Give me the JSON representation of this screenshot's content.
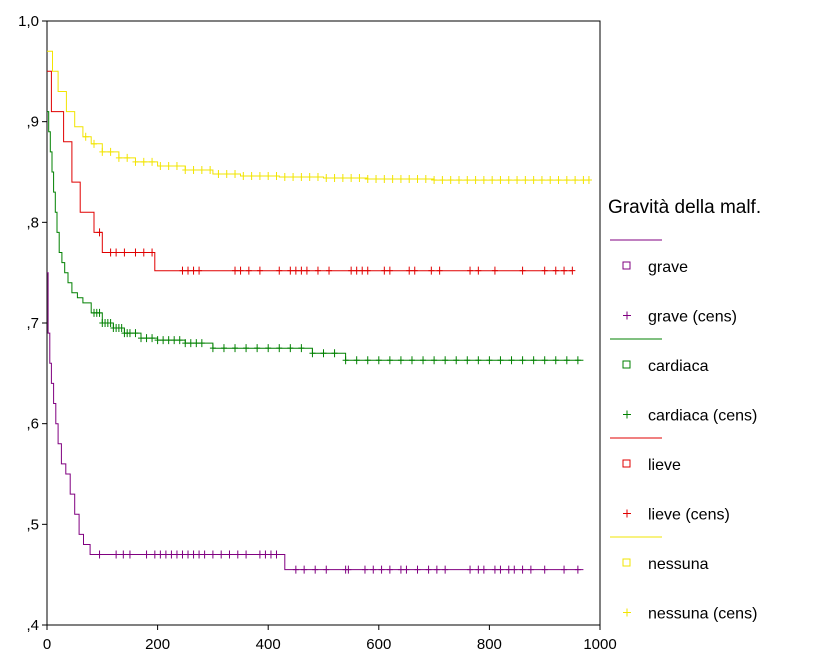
{
  "chart_data": {
    "type": "line",
    "chart_subtype": "kaplan-meier survival",
    "title": "",
    "xlabel": "",
    "ylabel": "",
    "xlim": [
      0,
      1000
    ],
    "ylim": [
      0.4,
      1.0
    ],
    "x_ticks": [
      0,
      200,
      400,
      600,
      800,
      1000
    ],
    "x_tick_labels": [
      "0",
      "200",
      "400",
      "600",
      "800",
      "1000"
    ],
    "y_ticks": [
      0.4,
      0.5,
      0.6,
      0.7,
      0.8,
      0.9,
      1.0
    ],
    "y_tick_labels": [
      ",4",
      ",5",
      ",6",
      ",7",
      ",8",
      ",9",
      "1,0"
    ],
    "grid": false,
    "legend_title": "Gravità della malf.",
    "legend_position": "right",
    "legend_entries": [
      "grave",
      "grave (cens)",
      "cardiaca",
      "cardiaca (cens)",
      "lieve",
      "lieve (cens)",
      "nessuna",
      "nessuna (cens)"
    ],
    "series": [
      {
        "name": "grave",
        "color": "#800080",
        "steps": [
          [
            0,
            0.75
          ],
          [
            2,
            0.69
          ],
          [
            5,
            0.66
          ],
          [
            8,
            0.64
          ],
          [
            12,
            0.62
          ],
          [
            16,
            0.6
          ],
          [
            20,
            0.58
          ],
          [
            26,
            0.56
          ],
          [
            34,
            0.55
          ],
          [
            42,
            0.53
          ],
          [
            50,
            0.51
          ],
          [
            58,
            0.49
          ],
          [
            66,
            0.48
          ],
          [
            78,
            0.47
          ],
          [
            430,
            0.455
          ],
          [
            970,
            0.455
          ]
        ],
        "censored": [
          95,
          125,
          138,
          150,
          180,
          195,
          205,
          215,
          225,
          235,
          245,
          255,
          265,
          275,
          285,
          300,
          315,
          330,
          345,
          360,
          385,
          395,
          405,
          415,
          450,
          465,
          485,
          505,
          540,
          545,
          575,
          590,
          605,
          620,
          640,
          650,
          670,
          690,
          705,
          720,
          765,
          780,
          790,
          810,
          820,
          835,
          845,
          860,
          875,
          900,
          935,
          960
        ]
      },
      {
        "name": "cardiaca",
        "color": "#008000",
        "steps": [
          [
            0,
            0.91
          ],
          [
            3,
            0.89
          ],
          [
            6,
            0.87
          ],
          [
            9,
            0.85
          ],
          [
            12,
            0.83
          ],
          [
            15,
            0.81
          ],
          [
            18,
            0.79
          ],
          [
            22,
            0.77
          ],
          [
            27,
            0.76
          ],
          [
            32,
            0.75
          ],
          [
            38,
            0.74
          ],
          [
            45,
            0.73
          ],
          [
            55,
            0.725
          ],
          [
            65,
            0.72
          ],
          [
            80,
            0.71
          ],
          [
            100,
            0.7
          ],
          [
            120,
            0.695
          ],
          [
            140,
            0.69
          ],
          [
            170,
            0.685
          ],
          [
            200,
            0.683
          ],
          [
            250,
            0.68
          ],
          [
            300,
            0.675
          ],
          [
            480,
            0.67
          ],
          [
            540,
            0.663
          ],
          [
            970,
            0.663
          ]
        ],
        "censored": [
          85,
          90,
          95,
          100,
          105,
          110,
          115,
          120,
          125,
          130,
          135,
          140,
          145,
          150,
          160,
          170,
          180,
          190,
          200,
          210,
          220,
          230,
          240,
          250,
          260,
          270,
          280,
          300,
          320,
          340,
          360,
          380,
          400,
          420,
          440,
          460,
          480,
          500,
          520,
          540,
          560,
          580,
          600,
          620,
          640,
          660,
          680,
          700,
          720,
          740,
          760,
          780,
          800,
          820,
          840,
          860,
          880,
          900,
          920,
          940,
          960
        ]
      },
      {
        "name": "lieve",
        "color": "#e00000",
        "steps": [
          [
            0,
            0.95
          ],
          [
            8,
            0.91
          ],
          [
            30,
            0.88
          ],
          [
            45,
            0.84
          ],
          [
            60,
            0.81
          ],
          [
            85,
            0.79
          ],
          [
            100,
            0.77
          ],
          [
            195,
            0.752
          ],
          [
            950,
            0.752
          ]
        ],
        "censored": [
          95,
          115,
          125,
          140,
          160,
          175,
          190,
          245,
          255,
          265,
          275,
          340,
          350,
          365,
          385,
          420,
          440,
          450,
          460,
          470,
          490,
          510,
          550,
          560,
          570,
          580,
          610,
          620,
          655,
          665,
          695,
          710,
          765,
          780,
          810,
          860,
          900,
          920,
          935,
          950
        ]
      },
      {
        "name": "nessuna",
        "color": "#f2e400",
        "steps": [
          [
            0,
            0.97
          ],
          [
            10,
            0.95
          ],
          [
            20,
            0.93
          ],
          [
            35,
            0.91
          ],
          [
            50,
            0.895
          ],
          [
            65,
            0.885
          ],
          [
            80,
            0.878
          ],
          [
            100,
            0.87
          ],
          [
            130,
            0.864
          ],
          [
            160,
            0.86
          ],
          [
            200,
            0.856
          ],
          [
            250,
            0.852
          ],
          [
            300,
            0.848
          ],
          [
            350,
            0.846
          ],
          [
            420,
            0.845
          ],
          [
            500,
            0.844
          ],
          [
            580,
            0.843
          ],
          [
            700,
            0.842
          ],
          [
            980,
            0.842
          ]
        ],
        "censored": [
          70,
          85,
          100,
          115,
          130,
          145,
          160,
          175,
          190,
          205,
          220,
          235,
          250,
          265,
          280,
          295,
          310,
          325,
          340,
          355,
          370,
          385,
          400,
          415,
          430,
          445,
          460,
          475,
          490,
          505,
          520,
          535,
          550,
          565,
          580,
          595,
          610,
          625,
          640,
          655,
          670,
          685,
          700,
          715,
          730,
          745,
          760,
          775,
          790,
          805,
          820,
          835,
          850,
          865,
          880,
          895,
          910,
          925,
          940,
          955,
          970,
          980
        ]
      }
    ]
  }
}
